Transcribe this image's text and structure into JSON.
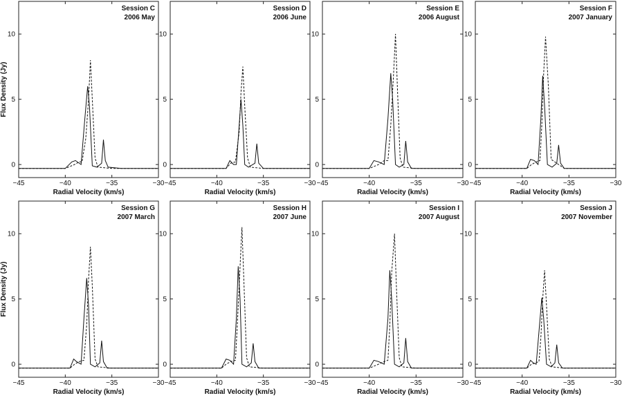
{
  "chart_data": [
    {
      "type": "line",
      "labels": [
        "Session C",
        "2006 May"
      ],
      "xlabel": "Radial Velocity (km/s)",
      "ylabel": "Flux Density (Jy)",
      "xlim": [
        -45,
        -30
      ],
      "ylim": [
        -1,
        12.5
      ],
      "xticks": [
        -45,
        -40,
        -35,
        -30
      ],
      "yticks": [
        0,
        5,
        10
      ],
      "series": [
        {
          "style": "solid",
          "x": [
            -45,
            -40,
            -39.3,
            -38.9,
            -38.3,
            -37.9,
            -37.6,
            -37.4,
            -37.1,
            -36.6,
            -36.1,
            -35.9,
            -35.7,
            -35.4,
            -34,
            -30
          ],
          "y": [
            -0.3,
            -0.3,
            0.2,
            0.3,
            0,
            3.5,
            6.0,
            4.5,
            -0.1,
            -0.2,
            0.1,
            1.9,
            0.3,
            -0.2,
            -0.3,
            -0.3
          ]
        },
        {
          "style": "dashed",
          "x": [
            -45,
            -40,
            -39,
            -38.5,
            -38.2,
            -37.8,
            -37.5,
            -37.3,
            -37.1,
            -36.8,
            -36.5,
            -35,
            -30
          ],
          "y": [
            -0.3,
            -0.3,
            0,
            0.2,
            0.2,
            2.0,
            5.0,
            8.0,
            5.0,
            0.5,
            -0.2,
            -0.3,
            -0.3
          ]
        }
      ]
    },
    {
      "type": "line",
      "labels": [
        "Session D",
        "2006 June"
      ],
      "xlabel": "Radial Velocity (km/s)",
      "ylabel": "",
      "xlim": [
        -45,
        -30
      ],
      "ylim": [
        -1,
        12.5
      ],
      "xticks": [
        -45,
        -40,
        -35,
        -30
      ],
      "yticks": [
        0,
        5,
        10
      ],
      "series": [
        {
          "style": "solid",
          "x": [
            -45,
            -39,
            -38.6,
            -38.2,
            -37.9,
            -37.6,
            -37.4,
            -37.2,
            -37,
            -36.6,
            -35.9,
            -35.7,
            -35.5,
            -35,
            -30
          ],
          "y": [
            -0.3,
            -0.3,
            0.3,
            0,
            0,
            3.0,
            5.0,
            3.0,
            0,
            -0.2,
            0.1,
            1.6,
            0.1,
            -0.3,
            -0.3
          ]
        },
        {
          "style": "dashed",
          "x": [
            -45,
            -39,
            -38.5,
            -38,
            -37.6,
            -37.4,
            -37.2,
            -37,
            -36.7,
            -36.4,
            -35,
            -30
          ],
          "y": [
            -0.3,
            -0.3,
            0.1,
            0.2,
            2.5,
            5.5,
            7.5,
            4.5,
            0.5,
            -0.2,
            -0.3,
            -0.3
          ]
        }
      ]
    },
    {
      "type": "line",
      "labels": [
        "Session E",
        "2006 August"
      ],
      "xlabel": "Radial Velocity (km/s)",
      "ylabel": "",
      "xlim": [
        -45,
        -30
      ],
      "ylim": [
        -1,
        12.5
      ],
      "xticks": [
        -45,
        -40,
        -35,
        -30
      ],
      "yticks": [
        0,
        5,
        10
      ],
      "series": [
        {
          "style": "solid",
          "x": [
            -45,
            -40,
            -39.5,
            -39,
            -38.4,
            -38,
            -37.7,
            -37.5,
            -37.2,
            -36.8,
            -36.3,
            -36.1,
            -35.9,
            -35.5,
            -30
          ],
          "y": [
            -0.3,
            -0.3,
            0.3,
            0.2,
            0,
            3.5,
            7.0,
            5.0,
            0,
            -0.2,
            0,
            1.8,
            0.2,
            -0.3,
            -0.3
          ]
        },
        {
          "style": "dashed",
          "x": [
            -45,
            -40,
            -39,
            -38.4,
            -38,
            -37.7,
            -37.4,
            -37.2,
            -37,
            -36.7,
            -36.4,
            -35,
            -30
          ],
          "y": [
            -0.3,
            -0.3,
            0,
            0.3,
            0.3,
            3.0,
            7.0,
            10.0,
            6.0,
            0.5,
            -0.2,
            -0.3,
            -0.3
          ]
        }
      ]
    },
    {
      "type": "line",
      "labels": [
        "Session F",
        "2007 January"
      ],
      "xlabel": "Radial Velocity (km/s)",
      "ylabel": "",
      "xlim": [
        -45,
        -30
      ],
      "ylim": [
        -1,
        12.5
      ],
      "xticks": [
        -45,
        -40,
        -35,
        -30
      ],
      "yticks": [
        0,
        5,
        10
      ],
      "series": [
        {
          "style": "solid",
          "x": [
            -45,
            -39.5,
            -39.1,
            -38.7,
            -38.3,
            -38,
            -37.8,
            -37.6,
            -37.3,
            -36.8,
            -36.3,
            -36.1,
            -35.9,
            -35.5,
            -30
          ],
          "y": [
            -0.3,
            -0.3,
            0.4,
            0.3,
            0,
            3.5,
            6.8,
            4.5,
            0,
            -0.2,
            0.1,
            1.5,
            0.1,
            -0.3,
            -0.3
          ]
        },
        {
          "style": "dashed",
          "x": [
            -45,
            -39.5,
            -39,
            -38.5,
            -38.1,
            -37.9,
            -37.7,
            -37.5,
            -37.2,
            -36.9,
            -35.5,
            -30
          ],
          "y": [
            -0.3,
            -0.3,
            0,
            0.2,
            0.3,
            3.0,
            7.0,
            9.8,
            6.0,
            0.4,
            -0.3,
            -0.3
          ]
        }
      ]
    },
    {
      "type": "line",
      "labels": [
        "Session G",
        "2007 March"
      ],
      "xlabel": "Radial Velocity (km/s)",
      "ylabel": "Flux Density (Jy)",
      "xlim": [
        -45,
        -30
      ],
      "ylim": [
        -1,
        12.5
      ],
      "xticks": [
        -45,
        -40,
        -35,
        -30
      ],
      "yticks": [
        0,
        5,
        10
      ],
      "series": [
        {
          "style": "solid",
          "x": [
            -45,
            -39.5,
            -39.1,
            -38.8,
            -38.3,
            -38,
            -37.7,
            -37.5,
            -37.3,
            -36.8,
            -36.3,
            -36.1,
            -35.9,
            -35.5,
            -30
          ],
          "y": [
            -0.3,
            -0.3,
            0.4,
            0.2,
            0,
            3.5,
            6.6,
            4.5,
            0,
            -0.2,
            0.1,
            1.8,
            0.2,
            -0.3,
            -0.3
          ]
        },
        {
          "style": "dashed",
          "x": [
            -45,
            -39.5,
            -39,
            -38.5,
            -38,
            -37.7,
            -37.5,
            -37.3,
            -37.1,
            -36.8,
            -36.5,
            -35,
            -30
          ],
          "y": [
            -0.3,
            -0.3,
            0,
            0.2,
            0.3,
            3.0,
            6.5,
            9.0,
            6.0,
            0.4,
            -0.2,
            -0.3,
            -0.3
          ]
        }
      ]
    },
    {
      "type": "line",
      "labels": [
        "Session H",
        "2007 June"
      ],
      "xlabel": "Radial Velocity (km/s)",
      "ylabel": "",
      "xlim": [
        -45,
        -30
      ],
      "ylim": [
        -1,
        12.5
      ],
      "xticks": [
        -45,
        -40,
        -35,
        -30
      ],
      "yticks": [
        0,
        5,
        10
      ],
      "series": [
        {
          "style": "solid",
          "x": [
            -45,
            -39.5,
            -39,
            -38.6,
            -38.2,
            -37.9,
            -37.7,
            -37.5,
            -37.3,
            -36.8,
            -36.3,
            -36.1,
            -35.9,
            -35.5,
            -30
          ],
          "y": [
            -0.3,
            -0.3,
            0.4,
            0.3,
            0,
            3.5,
            7.5,
            5.0,
            0,
            -0.2,
            0.1,
            1.6,
            0.2,
            -0.3,
            -0.3
          ]
        },
        {
          "style": "dashed",
          "x": [
            -45,
            -39.5,
            -39,
            -38.5,
            -38,
            -37.8,
            -37.5,
            -37.3,
            -37.1,
            -36.8,
            -36.5,
            -35,
            -30
          ],
          "y": [
            -0.3,
            -0.3,
            0,
            0.2,
            0.3,
            3.0,
            7.5,
            10.5,
            6.5,
            0.5,
            -0.2,
            -0.3,
            -0.3
          ]
        }
      ]
    },
    {
      "type": "line",
      "labels": [
        "Session I",
        "2007 August"
      ],
      "xlabel": "Radial Velocity (km/s)",
      "ylabel": "",
      "xlim": [
        -45,
        -30
      ],
      "ylim": [
        -1,
        12.5
      ],
      "xticks": [
        -45,
        -40,
        -35,
        -30
      ],
      "yticks": [
        0,
        5,
        10
      ],
      "series": [
        {
          "style": "solid",
          "x": [
            -45,
            -40,
            -39.5,
            -39,
            -38.4,
            -38,
            -37.8,
            -37.6,
            -37.3,
            -36.8,
            -36.3,
            -36.1,
            -35.9,
            -35.5,
            -30
          ],
          "y": [
            -0.3,
            -0.3,
            0.3,
            0.2,
            0,
            3.5,
            7.2,
            5.0,
            0,
            -0.2,
            0.1,
            2.0,
            0.2,
            -0.3,
            -0.3
          ]
        },
        {
          "style": "dashed",
          "x": [
            -45,
            -40,
            -39,
            -38.4,
            -38,
            -37.8,
            -37.6,
            -37.3,
            -37.1,
            -36.8,
            -36.5,
            -35,
            -30
          ],
          "y": [
            -0.3,
            -0.3,
            0,
            0.2,
            0.3,
            3.0,
            7.0,
            10.0,
            6.0,
            0.5,
            -0.2,
            -0.3,
            -0.3
          ]
        }
      ]
    },
    {
      "type": "line",
      "labels": [
        "Session J",
        "2007 November"
      ],
      "xlabel": "Radial Velocity (km/s)",
      "ylabel": "",
      "xlim": [
        -45,
        -30
      ],
      "ylim": [
        -1,
        12.5
      ],
      "xticks": [
        -45,
        -40,
        -35,
        -30
      ],
      "yticks": [
        0,
        5,
        10
      ],
      "series": [
        {
          "style": "solid",
          "x": [
            -45,
            -39.5,
            -39.1,
            -38.8,
            -38.5,
            -38.2,
            -37.9,
            -37.7,
            -37.4,
            -36.9,
            -36.5,
            -36.3,
            -36.1,
            -35.7,
            -30
          ],
          "y": [
            -0.3,
            -0.3,
            0.3,
            0.1,
            0,
            2.5,
            5.1,
            3.5,
            0,
            -0.2,
            0.1,
            1.5,
            0.1,
            -0.3,
            -0.3
          ]
        },
        {
          "style": "dashed",
          "x": [
            -45,
            -39.5,
            -39,
            -38.6,
            -38.2,
            -38,
            -37.8,
            -37.6,
            -37.4,
            -37.1,
            -36.8,
            -35.5,
            -30
          ],
          "y": [
            -0.3,
            -0.3,
            0,
            0.1,
            0.2,
            2.0,
            5.0,
            7.2,
            4.5,
            0.4,
            -0.2,
            -0.3,
            -0.3
          ]
        }
      ]
    }
  ]
}
